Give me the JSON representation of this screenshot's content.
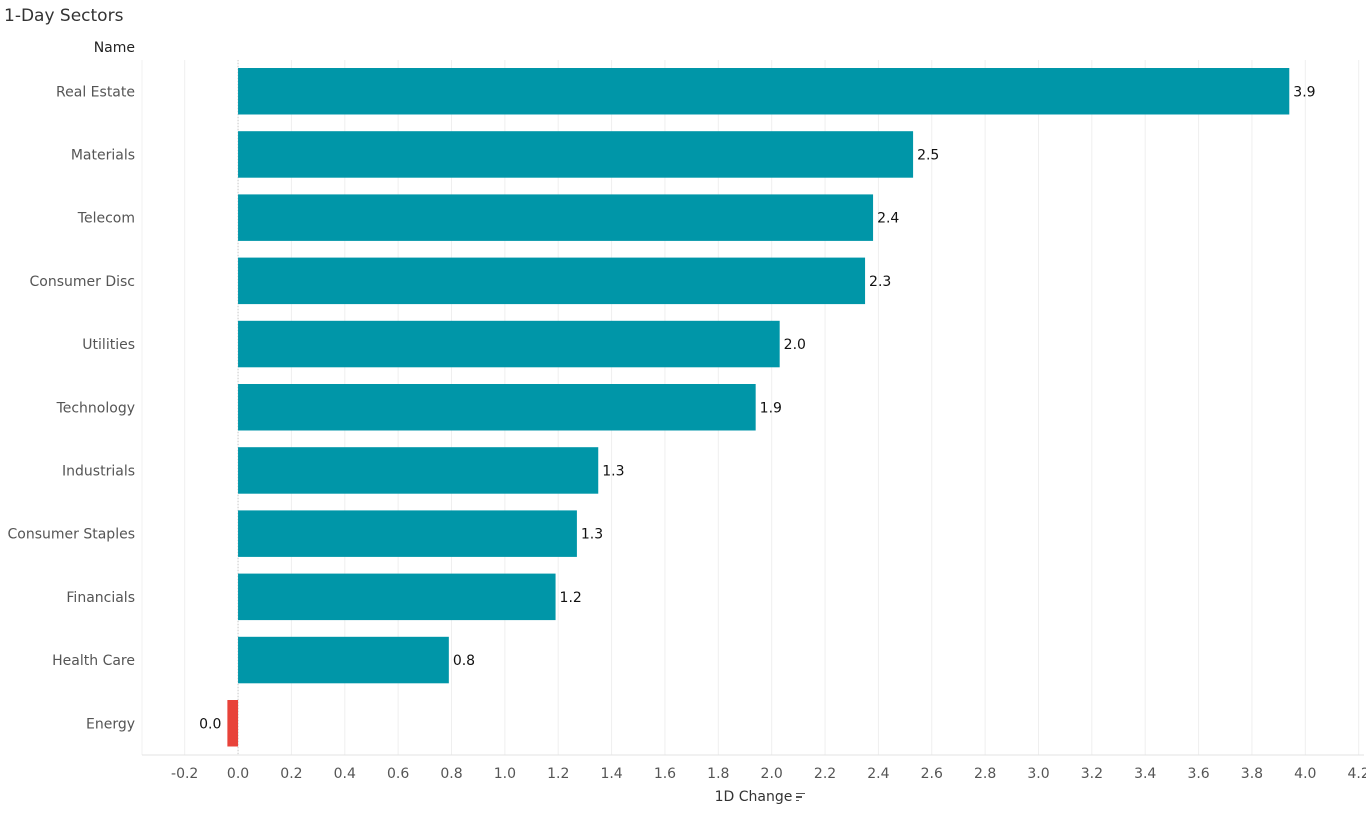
{
  "chart_data": {
    "type": "bar",
    "orientation": "horizontal",
    "title": "1-Day Sectors",
    "ylabel": "Name",
    "xlabel": "1D Change",
    "categories": [
      "Real Estate",
      "Materials",
      "Telecom",
      "Consumer Disc",
      "Utilities",
      "Technology",
      "Industrials",
      "Consumer Staples",
      "Financials",
      "Health Care",
      "Energy"
    ],
    "values": [
      3.94,
      2.53,
      2.38,
      2.35,
      2.03,
      1.94,
      1.35,
      1.27,
      1.19,
      0.79,
      -0.04
    ],
    "value_labels": [
      "3.9",
      "2.5",
      "2.4",
      "2.3",
      "2.0",
      "1.9",
      "1.3",
      "1.3",
      "1.2",
      "0.8",
      "0.0"
    ],
    "xlim": [
      -0.36,
      4.22
    ],
    "xticks": [
      "-0.2",
      "0.0",
      "0.2",
      "0.4",
      "0.6",
      "0.8",
      "1.0",
      "1.2",
      "1.4",
      "1.6",
      "1.8",
      "2.0",
      "2.2",
      "2.4",
      "2.6",
      "2.8",
      "3.0",
      "3.2",
      "3.4",
      "3.6",
      "3.8",
      "4.0",
      "4.2"
    ],
    "grid": true,
    "colors": {
      "positive": "#0096A8",
      "negative": "#E8433A"
    }
  }
}
